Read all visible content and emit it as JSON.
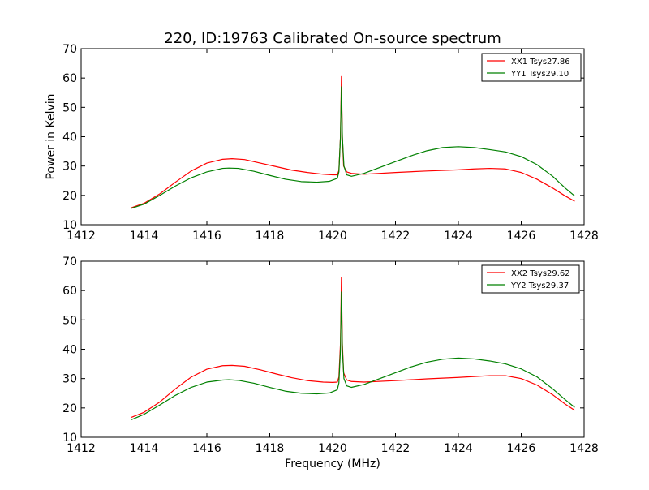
{
  "figure_title": "220, ID:19763 Calibrated On-source spectrum",
  "chart_data": [
    {
      "type": "line",
      "title": "220, ID:19763 Calibrated On-source spectrum",
      "xlabel": "",
      "ylabel": "Power in Kelvin",
      "xlim": [
        1412,
        1428
      ],
      "ylim": [
        10,
        70
      ],
      "xticks": [
        1412,
        1414,
        1416,
        1418,
        1420,
        1422,
        1424,
        1426,
        1428
      ],
      "yticks": [
        10,
        20,
        30,
        40,
        50,
        60,
        70
      ],
      "grid": false,
      "legend_position": "top-right",
      "series": [
        {
          "name": "XX1 Tsys27.86",
          "color": "#ff0000",
          "points": [
            [
              1413.6,
              15.8
            ],
            [
              1414.0,
              17.3
            ],
            [
              1414.5,
              20.5
            ],
            [
              1415.0,
              24.5
            ],
            [
              1415.5,
              28.3
            ],
            [
              1416.0,
              31.0
            ],
            [
              1416.5,
              32.3
            ],
            [
              1416.8,
              32.5
            ],
            [
              1417.2,
              32.2
            ],
            [
              1417.7,
              31.0
            ],
            [
              1418.2,
              29.8
            ],
            [
              1418.7,
              28.6
            ],
            [
              1419.2,
              27.8
            ],
            [
              1419.7,
              27.2
            ],
            [
              1420.0,
              27.0
            ],
            [
              1420.15,
              27.0
            ],
            [
              1420.2,
              28.5
            ],
            [
              1420.25,
              40.0
            ],
            [
              1420.28,
              60.5
            ],
            [
              1420.31,
              40.0
            ],
            [
              1420.35,
              30.0
            ],
            [
              1420.45,
              28.0
            ],
            [
              1420.6,
              27.5
            ],
            [
              1421.0,
              27.2
            ],
            [
              1422.0,
              27.8
            ],
            [
              1423.0,
              28.3
            ],
            [
              1424.0,
              28.7
            ],
            [
              1424.5,
              29.0
            ],
            [
              1425.0,
              29.2
            ],
            [
              1425.5,
              29.0
            ],
            [
              1426.0,
              27.8
            ],
            [
              1426.5,
              25.5
            ],
            [
              1427.0,
              22.5
            ],
            [
              1427.4,
              19.8
            ],
            [
              1427.7,
              18.0
            ]
          ]
        },
        {
          "name": "YY1 Tsys29.10",
          "color": "#008000",
          "points": [
            [
              1413.6,
              15.6
            ],
            [
              1414.0,
              17.0
            ],
            [
              1414.5,
              20.0
            ],
            [
              1415.0,
              23.2
            ],
            [
              1415.5,
              26.0
            ],
            [
              1416.0,
              28.0
            ],
            [
              1416.5,
              29.2
            ],
            [
              1416.7,
              29.3
            ],
            [
              1417.0,
              29.2
            ],
            [
              1417.5,
              28.2
            ],
            [
              1418.0,
              26.8
            ],
            [
              1418.5,
              25.5
            ],
            [
              1419.0,
              24.7
            ],
            [
              1419.5,
              24.5
            ],
            [
              1419.9,
              24.8
            ],
            [
              1420.15,
              25.8
            ],
            [
              1420.2,
              28.0
            ],
            [
              1420.25,
              40.0
            ],
            [
              1420.28,
              57.0
            ],
            [
              1420.31,
              40.0
            ],
            [
              1420.36,
              30.0
            ],
            [
              1420.45,
              27.0
            ],
            [
              1420.6,
              26.5
            ],
            [
              1421.0,
              27.5
            ],
            [
              1421.5,
              29.5
            ],
            [
              1422.0,
              31.5
            ],
            [
              1422.5,
              33.5
            ],
            [
              1423.0,
              35.2
            ],
            [
              1423.5,
              36.3
            ],
            [
              1424.0,
              36.6
            ],
            [
              1424.5,
              36.3
            ],
            [
              1425.0,
              35.6
            ],
            [
              1425.5,
              34.8
            ],
            [
              1426.0,
              33.2
            ],
            [
              1426.5,
              30.5
            ],
            [
              1427.0,
              26.5
            ],
            [
              1427.4,
              22.5
            ],
            [
              1427.7,
              19.8
            ]
          ]
        }
      ]
    },
    {
      "type": "line",
      "title": "",
      "xlabel": "Frequency (MHz)",
      "ylabel": "",
      "xlim": [
        1412,
        1428
      ],
      "ylim": [
        10,
        70
      ],
      "xticks": [
        1412,
        1414,
        1416,
        1418,
        1420,
        1422,
        1424,
        1426,
        1428
      ],
      "yticks": [
        10,
        20,
        30,
        40,
        50,
        60,
        70
      ],
      "grid": false,
      "legend_position": "top-right",
      "series": [
        {
          "name": "XX2 Tsys29.62",
          "color": "#ff0000",
          "points": [
            [
              1413.6,
              16.8
            ],
            [
              1414.0,
              18.5
            ],
            [
              1414.5,
              22.0
            ],
            [
              1415.0,
              26.5
            ],
            [
              1415.5,
              30.5
            ],
            [
              1416.0,
              33.2
            ],
            [
              1416.5,
              34.4
            ],
            [
              1416.8,
              34.5
            ],
            [
              1417.2,
              34.2
            ],
            [
              1417.7,
              33.0
            ],
            [
              1418.2,
              31.6
            ],
            [
              1418.7,
              30.3
            ],
            [
              1419.2,
              29.3
            ],
            [
              1419.7,
              28.8
            ],
            [
              1420.0,
              28.7
            ],
            [
              1420.15,
              28.8
            ],
            [
              1420.2,
              30.5
            ],
            [
              1420.25,
              42.0
            ],
            [
              1420.28,
              64.5
            ],
            [
              1420.31,
              42.0
            ],
            [
              1420.35,
              32.0
            ],
            [
              1420.45,
              29.5
            ],
            [
              1420.6,
              29.0
            ],
            [
              1421.0,
              28.8
            ],
            [
              1422.0,
              29.3
            ],
            [
              1423.0,
              29.9
            ],
            [
              1424.0,
              30.4
            ],
            [
              1424.5,
              30.7
            ],
            [
              1425.0,
              31.0
            ],
            [
              1425.5,
              31.0
            ],
            [
              1426.0,
              30.0
            ],
            [
              1426.5,
              27.8
            ],
            [
              1427.0,
              24.5
            ],
            [
              1427.4,
              21.3
            ],
            [
              1427.7,
              19.2
            ]
          ]
        },
        {
          "name": "YY2 Tsys29.37",
          "color": "#008000",
          "points": [
            [
              1413.6,
              16.0
            ],
            [
              1414.0,
              17.8
            ],
            [
              1414.5,
              21.0
            ],
            [
              1415.0,
              24.3
            ],
            [
              1415.5,
              27.0
            ],
            [
              1416.0,
              28.8
            ],
            [
              1416.5,
              29.5
            ],
            [
              1416.7,
              29.6
            ],
            [
              1417.0,
              29.4
            ],
            [
              1417.5,
              28.4
            ],
            [
              1418.0,
              27.0
            ],
            [
              1418.5,
              25.7
            ],
            [
              1419.0,
              25.0
            ],
            [
              1419.5,
              24.8
            ],
            [
              1419.9,
              25.1
            ],
            [
              1420.15,
              26.2
            ],
            [
              1420.2,
              28.5
            ],
            [
              1420.25,
              40.0
            ],
            [
              1420.28,
              59.5
            ],
            [
              1420.31,
              40.0
            ],
            [
              1420.36,
              30.0
            ],
            [
              1420.45,
              27.5
            ],
            [
              1420.6,
              27.0
            ],
            [
              1421.0,
              28.0
            ],
            [
              1421.5,
              30.0
            ],
            [
              1422.0,
              32.0
            ],
            [
              1422.5,
              34.0
            ],
            [
              1423.0,
              35.6
            ],
            [
              1423.5,
              36.6
            ],
            [
              1424.0,
              37.0
            ],
            [
              1424.5,
              36.7
            ],
            [
              1425.0,
              36.0
            ],
            [
              1425.5,
              35.0
            ],
            [
              1426.0,
              33.3
            ],
            [
              1426.5,
              30.6
            ],
            [
              1427.0,
              26.5
            ],
            [
              1427.4,
              22.8
            ],
            [
              1427.7,
              20.2
            ]
          ]
        }
      ]
    }
  ]
}
